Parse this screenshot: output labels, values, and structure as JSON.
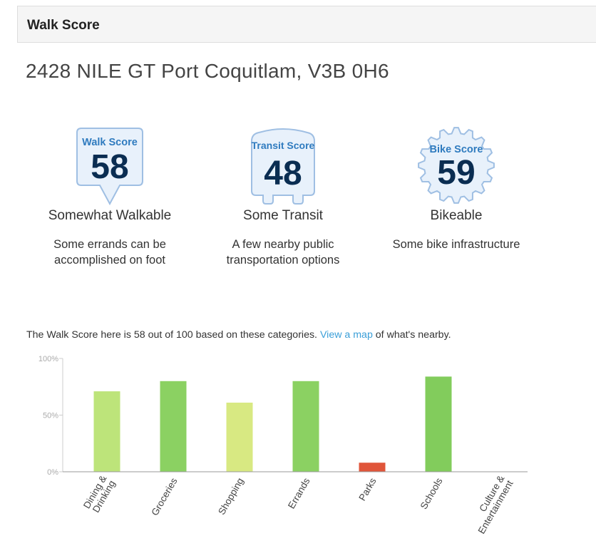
{
  "header": {
    "title": "Walk Score"
  },
  "address": "2428 NILE GT Port Coquitlam, V3B 0H6",
  "scores": [
    {
      "label": "Walk Score",
      "value": "58",
      "rating": "Somewhat Walkable",
      "description_line1": "Some errands can be",
      "description_line2": "accomplished on foot",
      "icon": "walk-score-badge"
    },
    {
      "label": "Transit Score",
      "value": "48",
      "rating": "Some Transit",
      "description_line1": "A few nearby public",
      "description_line2": "transportation options",
      "icon": "transit-score-badge"
    },
    {
      "label": "Bike Score",
      "value": "59",
      "rating": "Bikeable",
      "description_line1": "Some bike infrastructure",
      "description_line2": "",
      "icon": "bike-score-badge"
    }
  ],
  "intro": {
    "prefix": "The Walk Score here is 58 out of 100 based on these categories.",
    "link": "View a map",
    "suffix": "of what's nearby."
  },
  "colors": {
    "badge_fill": "#e8f1fb",
    "badge_stroke": "#9fbfe3",
    "badge_label": "#2f7bbf",
    "badge_number": "#0a2d52",
    "link": "#3b9fd8"
  },
  "chart_data": {
    "type": "bar",
    "categories": [
      [
        "Dining &",
        "Drinking"
      ],
      [
        "Groceries"
      ],
      [
        "Shopping"
      ],
      [
        "Errands"
      ],
      [
        "Parks"
      ],
      [
        "Schools"
      ],
      [
        "Culture &",
        "Entertainment"
      ]
    ],
    "values": [
      71,
      80,
      61,
      80,
      8,
      84,
      0
    ],
    "colors": [
      "#bde47a",
      "#8bd162",
      "#d8e982",
      "#8bd162",
      "#e0553a",
      "#82cc5c",
      "#82cc5c"
    ],
    "ylim": [
      0,
      100
    ],
    "yticks": [
      {
        "value": 100,
        "label": "100%"
      },
      {
        "value": 50,
        "label": "50%"
      },
      {
        "value": 0,
        "label": "0%"
      }
    ],
    "grid": false
  }
}
